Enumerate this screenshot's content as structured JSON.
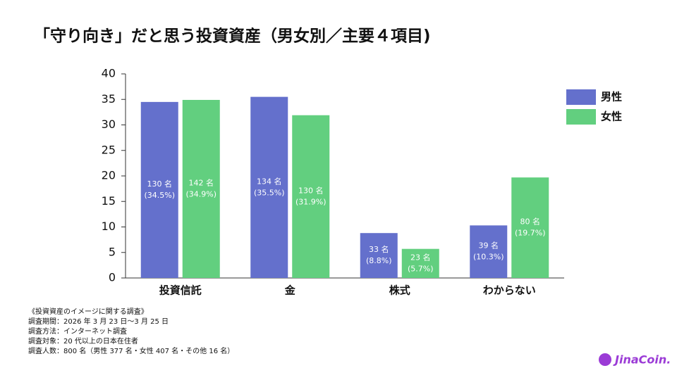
{
  "chart_data": {
    "type": "bar",
    "title": "「守り向き」だと思う投資資産（男女別／主要４項目)",
    "categories": [
      "投資信託",
      "金",
      "株式",
      "わからない"
    ],
    "series": [
      {
        "name": "男性",
        "color": "#6470cc",
        "values": [
          34.5,
          35.5,
          8.8,
          10.3
        ],
        "value_labels": [
          "130 名\n(34.5%)",
          "134 名\n(35.5%)",
          "33 名\n(8.8%)",
          "39 名\n(10.3%)"
        ]
      },
      {
        "name": "女性",
        "color": "#62cf7f",
        "values": [
          34.9,
          31.9,
          5.7,
          19.7
        ],
        "value_labels": [
          "142 名\n(34.9%)",
          "130 名\n(31.9%)",
          "23 名\n(5.7%)",
          "80 名\n(19.7%)"
        ]
      }
    ],
    "ylim": [
      0,
      40
    ],
    "yticks": [
      0,
      5,
      10,
      15,
      20,
      25,
      30,
      35,
      40
    ],
    "grid": false,
    "legend": "right"
  },
  "notes": [
    "《投資資産のイメージに関する調査》",
    "調査期間：2026 年 3 月 23 日〜3 月 25 日",
    "調査方法：インターネット調査",
    "調査対象：20 代以上の日本在住者",
    "調査人数：800 名（男性 377 名・女性 407 名・その他 16 名）"
  ],
  "logo": "JinaCoin."
}
